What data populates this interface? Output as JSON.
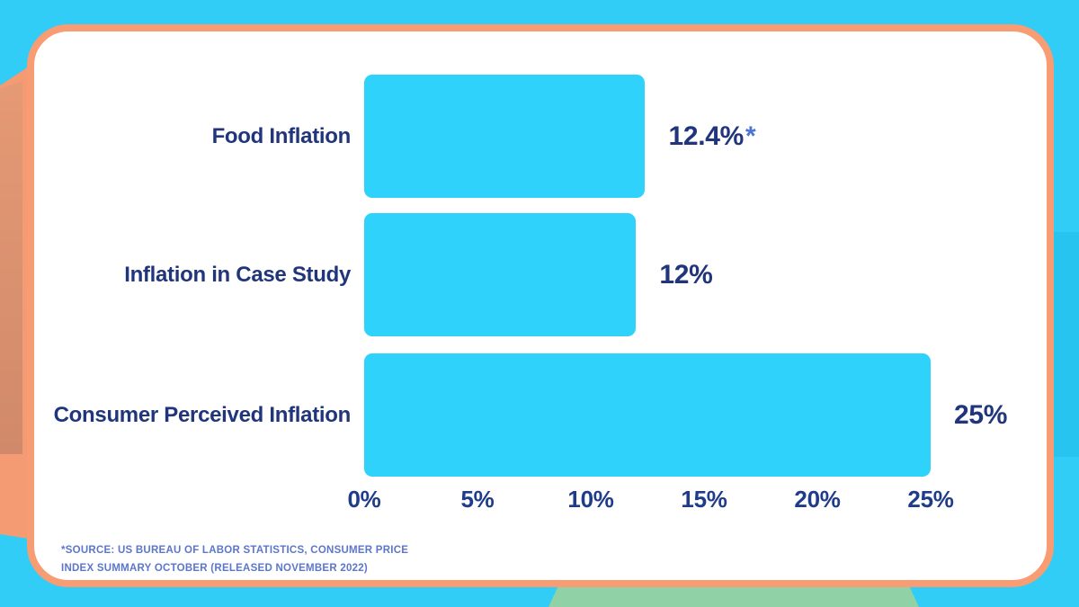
{
  "chart_data": {
    "type": "bar",
    "orientation": "horizontal",
    "categories": [
      "Food Inflation",
      "Inflation in Case Study",
      "Consumer Perceived Inflation"
    ],
    "values": [
      12.4,
      12,
      25
    ],
    "value_labels": [
      {
        "text": "12.4%",
        "suffix": "*"
      },
      {
        "text": "12%",
        "suffix": ""
      },
      {
        "text": "25%",
        "suffix": ""
      }
    ],
    "xticks": [
      "0%",
      "5%",
      "10%",
      "15%",
      "20%",
      "25%"
    ],
    "xlim": [
      0,
      25
    ],
    "xlabel": "",
    "ylabel": "",
    "grid": false,
    "legend": false,
    "bar_color": "#2ed2fa",
    "category_label_color": "#20357b",
    "value_label_color": "#20357b",
    "tick_label_color": "#1e3c8a",
    "asterisk_color": "#4c74d0"
  },
  "footnote": {
    "line1": "*SOURCE: US BUREAU OF LABOR STATISTICS, CONSUMER PRICE",
    "line2": "INDEX SUMMARY OCTOBER (RELEASED NOVEMBER 2022)",
    "color": "#5b76cc"
  },
  "colors": {
    "background": "#31cdf6",
    "right_band": "#27c4ef",
    "card_bg": "#ffffff",
    "card_border": "#f89c74",
    "left_blob": "#f49b73",
    "left_blob_dark_top": "#e59a74",
    "left_blob_dark_bottom": "#d0896a",
    "green_shape": "#90d1a5"
  }
}
